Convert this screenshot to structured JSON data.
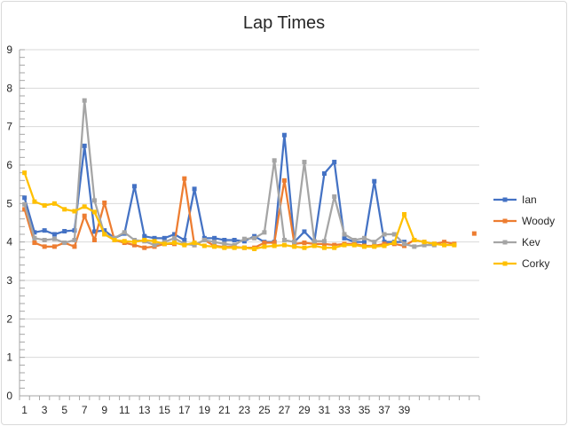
{
  "chart_data": {
    "type": "line",
    "title": "Lap Times",
    "xlabel": "",
    "ylabel": "",
    "ylim": [
      0,
      9
    ],
    "y_ticks": [
      0,
      1,
      2,
      3,
      4,
      5,
      6,
      7,
      8,
      9
    ],
    "x_tick_labels": [
      "1",
      "3",
      "5",
      "7",
      "9",
      "11",
      "13",
      "15",
      "17",
      "19",
      "21",
      "23",
      "25",
      "27",
      "29",
      "31",
      "33",
      "35",
      "37",
      "39"
    ],
    "categories": [
      1,
      2,
      3,
      4,
      5,
      6,
      7,
      8,
      9,
      10,
      11,
      12,
      13,
      14,
      15,
      16,
      17,
      18,
      19,
      20,
      21,
      22,
      23,
      24,
      25,
      26,
      27,
      28,
      29,
      30,
      31,
      32,
      33,
      34,
      35,
      36,
      37,
      38,
      39,
      40,
      41,
      42,
      43,
      44,
      45,
      46
    ],
    "grid": "horizontal",
    "legend_position": "right",
    "series": [
      {
        "name": "Ian",
        "color": "#4472c4",
        "values": [
          5.15,
          4.25,
          4.3,
          4.2,
          4.28,
          4.3,
          6.5,
          4.27,
          4.3,
          4.1,
          4.22,
          5.45,
          4.15,
          4.1,
          4.1,
          4.2,
          4.05,
          5.38,
          4.1,
          4.1,
          4.05,
          4.05,
          4.02,
          4.15,
          4.0,
          4.0,
          6.78,
          4.0,
          4.27,
          4.0,
          5.78,
          6.08,
          4.1,
          4.0,
          4.0,
          5.58,
          4.0,
          4.0,
          4.0,
          null,
          null,
          null,
          null,
          null,
          null,
          null
        ]
      },
      {
        "name": "Woody",
        "color": "#ed7d31",
        "values": [
          4.85,
          3.98,
          3.88,
          3.88,
          3.98,
          3.88,
          4.68,
          4.05,
          5.02,
          4.05,
          3.98,
          3.92,
          3.85,
          3.88,
          3.95,
          3.95,
          5.65,
          3.92,
          4.05,
          3.9,
          3.87,
          3.87,
          3.85,
          3.85,
          3.98,
          3.98,
          5.6,
          3.95,
          3.98,
          3.95,
          3.95,
          3.92,
          3.95,
          3.95,
          3.9,
          3.9,
          3.95,
          3.95,
          3.9,
          4.05,
          4.0,
          3.95,
          4.0,
          3.95,
          null,
          4.22
        ]
      },
      {
        "name": "Kev",
        "color": "#a5a5a5",
        "values": [
          4.98,
          4.1,
          4.05,
          4.08,
          3.98,
          4.05,
          7.68,
          5.08,
          4.2,
          4.1,
          4.25,
          4.05,
          4.02,
          3.92,
          4.0,
          4.1,
          3.95,
          3.92,
          4.05,
          4.0,
          3.95,
          3.92,
          4.08,
          4.1,
          4.25,
          6.12,
          4.05,
          4.0,
          6.08,
          4.02,
          4.02,
          5.18,
          4.2,
          4.05,
          4.1,
          4.0,
          4.2,
          4.2,
          3.95,
          3.88,
          3.92,
          3.92,
          null,
          null,
          null,
          null
        ]
      },
      {
        "name": "Corky",
        "color": "#ffc000",
        "values": [
          5.8,
          5.05,
          4.95,
          5.0,
          4.85,
          4.8,
          4.92,
          4.78,
          4.2,
          4.05,
          4.02,
          4.0,
          4.05,
          4.02,
          3.95,
          3.98,
          3.92,
          3.98,
          3.9,
          3.88,
          3.85,
          3.85,
          3.85,
          3.82,
          3.88,
          3.9,
          3.92,
          3.88,
          3.85,
          3.9,
          3.85,
          3.85,
          3.92,
          3.92,
          3.88,
          3.88,
          3.9,
          3.98,
          4.72,
          4.05,
          4.0,
          3.95,
          3.92,
          3.92,
          null,
          null
        ]
      }
    ]
  }
}
